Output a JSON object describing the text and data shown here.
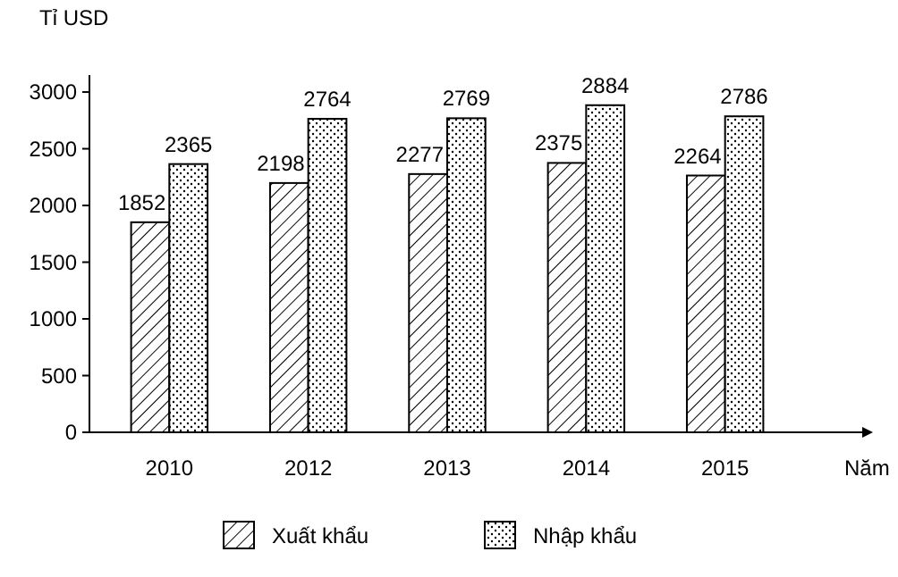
{
  "chart_data": {
    "type": "bar",
    "ylabel": "Tỉ USD",
    "xlabel": "Năm",
    "categories": [
      "2010",
      "2012",
      "2013",
      "2014",
      "2015"
    ],
    "series": [
      {
        "name": "Xuất khẩu",
        "color": "#000000",
        "values": [
          1852,
          2198,
          2277,
          2375,
          2264
        ]
      },
      {
        "name": "Nhập khẩu",
        "color": "#000000",
        "values": [
          2365,
          2764,
          2769,
          2884,
          2786
        ]
      }
    ],
    "ylim": [
      0,
      3150
    ],
    "yticks": [
      0,
      500,
      1000,
      1500,
      2000,
      2500,
      3000
    ],
    "data_labels": true,
    "legend": "bottom",
    "grid": false
  }
}
